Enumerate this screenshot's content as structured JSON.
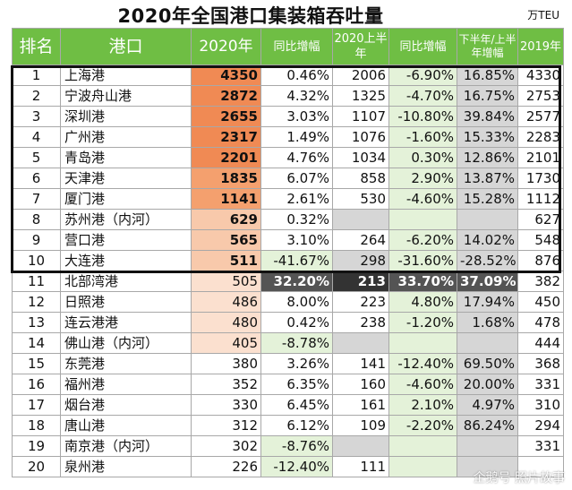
{
  "title": "2020年全国港口集装箱吞吐量",
  "unit": "万TEU",
  "watermark": "企鹅号 照片故事",
  "headers": {
    "rank": "排名",
    "port": "港口",
    "y2020": "2020年",
    "yoy": "同比增幅",
    "h1": "2020上半年",
    "h1_yoy": "同比增幅",
    "h2_vs_h1": "下半年/上半年增幅",
    "y2019": "2019年"
  },
  "colors": {
    "header_bg": "#6fbe44",
    "highlight_orange": "#f08a54",
    "light_green": "#e4f2d9",
    "gray": "#d6d6d6",
    "dark": "#545454"
  },
  "rows": [
    {
      "rank": "1",
      "port": "上海港",
      "y2020": "4350",
      "yoy": "0.46%",
      "h1": "2006",
      "h1_yoy": "-6.90%",
      "h2": "16.85%",
      "y2019": "4330",
      "level": 1.0
    },
    {
      "rank": "2",
      "port": "宁波舟山港",
      "y2020": "2872",
      "yoy": "4.32%",
      "h1": "1325",
      "h1_yoy": "-4.70%",
      "h2": "16.75%",
      "y2019": "2753",
      "level": 0.86
    },
    {
      "rank": "3",
      "port": "深圳港",
      "y2020": "2655",
      "yoy": "3.03%",
      "h1": "1107",
      "h1_yoy": "-10.80%",
      "h2": "39.84%",
      "y2019": "2577",
      "level": 0.8
    },
    {
      "rank": "4",
      "port": "广州港",
      "y2020": "2317",
      "yoy": "1.49%",
      "h1": "1076",
      "h1_yoy": "-1.60%",
      "h2": "15.33%",
      "y2019": "2283",
      "level": 0.74
    },
    {
      "rank": "5",
      "port": "青岛港",
      "y2020": "2201",
      "yoy": "4.76%",
      "h1": "1034",
      "h1_yoy": "0.30%",
      "h2": "12.86%",
      "y2019": "2101",
      "level": 0.72
    },
    {
      "rank": "6",
      "port": "天津港",
      "y2020": "1835",
      "yoy": "6.07%",
      "h1": "858",
      "h1_yoy": "2.90%",
      "h2": "13.87%",
      "y2019": "1730",
      "level": 0.66
    },
    {
      "rank": "7",
      "port": "厦门港",
      "y2020": "1141",
      "yoy": "2.61%",
      "h1": "530",
      "h1_yoy": "-4.60%",
      "h2": "15.28%",
      "y2019": "1112",
      "level": 0.55
    },
    {
      "rank": "8",
      "port": "苏州港（内河）",
      "y2020": "629",
      "yoy": "0.32%",
      "h1": "",
      "h1_yoy": "",
      "h2": "",
      "y2019": "627",
      "level": 0.42
    },
    {
      "rank": "9",
      "port": "营口港",
      "y2020": "565",
      "yoy": "3.10%",
      "h1": "264",
      "h1_yoy": "-6.20%",
      "h2": "14.02%",
      "y2019": "548",
      "level": 0.4
    },
    {
      "rank": "10",
      "port": "大连港",
      "y2020": "511",
      "yoy": "-41.67%",
      "h1": "298",
      "h1_yoy": "-31.60%",
      "h2": "-28.52%",
      "y2019": "876",
      "level": 0.38
    },
    {
      "rank": "11",
      "port": "北部湾港",
      "y2020": "505",
      "yoy": "32.20%",
      "h1": "213",
      "h1_yoy": "33.70%",
      "h2": "37.09%",
      "y2019": "382",
      "level": 0.37
    },
    {
      "rank": "12",
      "port": "日照港",
      "y2020": "486",
      "yoy": "8.00%",
      "h1": "223",
      "h1_yoy": "4.80%",
      "h2": "17.94%",
      "y2019": "450",
      "level": 0.36
    },
    {
      "rank": "13",
      "port": "连云港港",
      "y2020": "480",
      "yoy": "0.42%",
      "h1": "238",
      "h1_yoy": "-1.20%",
      "h2": "1.68%",
      "y2019": "478",
      "level": 0.35
    },
    {
      "rank": "14",
      "port": "佛山港（内河）",
      "y2020": "405",
      "yoy": "-8.78%",
      "h1": "",
      "h1_yoy": "",
      "h2": "",
      "y2019": "444",
      "level": 0.32
    },
    {
      "rank": "15",
      "port": "东莞港",
      "y2020": "380",
      "yoy": "3.26%",
      "h1": "141",
      "h1_yoy": "-12.40%",
      "h2": "69.50%",
      "y2019": "368",
      "level": 0.0
    },
    {
      "rank": "16",
      "port": "福州港",
      "y2020": "352",
      "yoy": "6.35%",
      "h1": "160",
      "h1_yoy": "-4.60%",
      "h2": "20.00%",
      "y2019": "331",
      "level": 0.0
    },
    {
      "rank": "17",
      "port": "烟台港",
      "y2020": "330",
      "yoy": "6.45%",
      "h1": "161",
      "h1_yoy": "2.10%",
      "h2": "4.97%",
      "y2019": "310",
      "level": 0.0
    },
    {
      "rank": "18",
      "port": "唐山港",
      "y2020": "312",
      "yoy": "6.12%",
      "h1": "109",
      "h1_yoy": "-2.20%",
      "h2": "86.24%",
      "y2019": "294",
      "level": 0.0
    },
    {
      "rank": "19",
      "port": "南京港（内河）",
      "y2020": "302",
      "yoy": "-8.76%",
      "h1": "",
      "h1_yoy": "",
      "h2": "",
      "y2019": "331",
      "level": 0.0
    },
    {
      "rank": "20",
      "port": "泉州港",
      "y2020": "226",
      "yoy": "-12.40%",
      "h1": "111",
      "h1_yoy": "",
      "h2": "",
      "y2019": "",
      "level": 0.0
    }
  ]
}
